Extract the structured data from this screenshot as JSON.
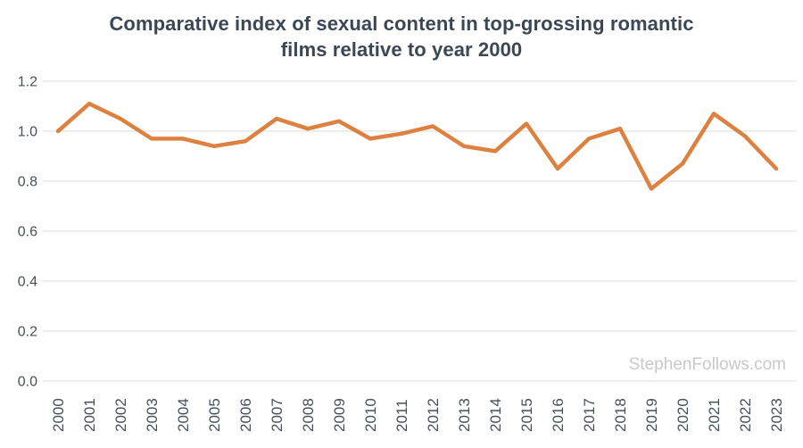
{
  "header": {
    "title_line1": "Comparative index of sexual content in top-grossing romantic",
    "title_line2": "films relative to year 2000"
  },
  "watermark": "StephenFollows.com",
  "colors": {
    "line": "#DD8140",
    "title": "#3B4754",
    "axis_label": "#46505B",
    "gridline": "#E2E2E2",
    "watermark": "#C9C9C9",
    "background": "#FFFFFF"
  },
  "chart_data": {
    "type": "line",
    "title": "Comparative index of sexual content in top-grossing romantic films relative to year 2000",
    "x": [
      2000,
      2001,
      2002,
      2003,
      2004,
      2005,
      2006,
      2007,
      2008,
      2009,
      2010,
      2011,
      2012,
      2013,
      2014,
      2015,
      2016,
      2017,
      2018,
      2019,
      2020,
      2021,
      2022,
      2023
    ],
    "values": [
      1.0,
      1.11,
      1.05,
      0.97,
      0.97,
      0.94,
      0.96,
      1.05,
      1.01,
      1.04,
      0.97,
      0.99,
      1.02,
      0.94,
      0.92,
      1.03,
      0.85,
      0.97,
      1.01,
      0.77,
      0.87,
      1.07,
      0.98,
      0.85
    ],
    "xlabel": "",
    "ylabel": "",
    "ylim": [
      0,
      1.2
    ],
    "ytick_step": 0.2,
    "grid": "horizontal-only",
    "legend": "none",
    "x_tick_rotation": -90
  }
}
